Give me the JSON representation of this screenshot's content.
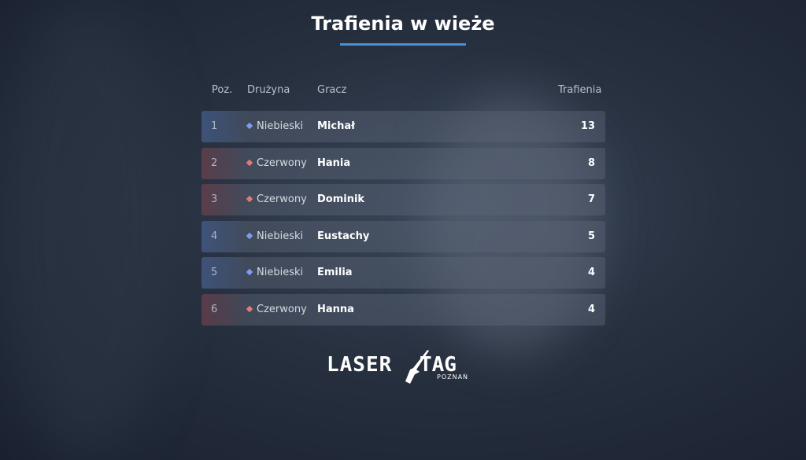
{
  "title": "Trafienia w wieże",
  "columns": {
    "pos": "Poz.",
    "team": "Drużyna",
    "player": "Gracz",
    "hits": "Trafienia"
  },
  "colors": {
    "blue": "#7e9cf0",
    "red": "#e07a7a",
    "accent": "#4a8fd6"
  },
  "rows": [
    {
      "pos": "1",
      "team": "Niebieski",
      "color": "blue",
      "player": "Michał",
      "hits": "13"
    },
    {
      "pos": "2",
      "team": "Czerwony",
      "color": "red",
      "player": "Hania",
      "hits": "8"
    },
    {
      "pos": "3",
      "team": "Czerwony",
      "color": "red",
      "player": "Dominik",
      "hits": "7"
    },
    {
      "pos": "4",
      "team": "Niebieski",
      "color": "blue",
      "player": "Eustachy",
      "hits": "5"
    },
    {
      "pos": "5",
      "team": "Niebieski",
      "color": "blue",
      "player": "Emilia",
      "hits": "4"
    },
    {
      "pos": "6",
      "team": "Czerwony",
      "color": "red",
      "player": "Hanna",
      "hits": "4"
    }
  ],
  "logo": {
    "main": "LASER TAG",
    "sub": "POZNAŃ"
  }
}
